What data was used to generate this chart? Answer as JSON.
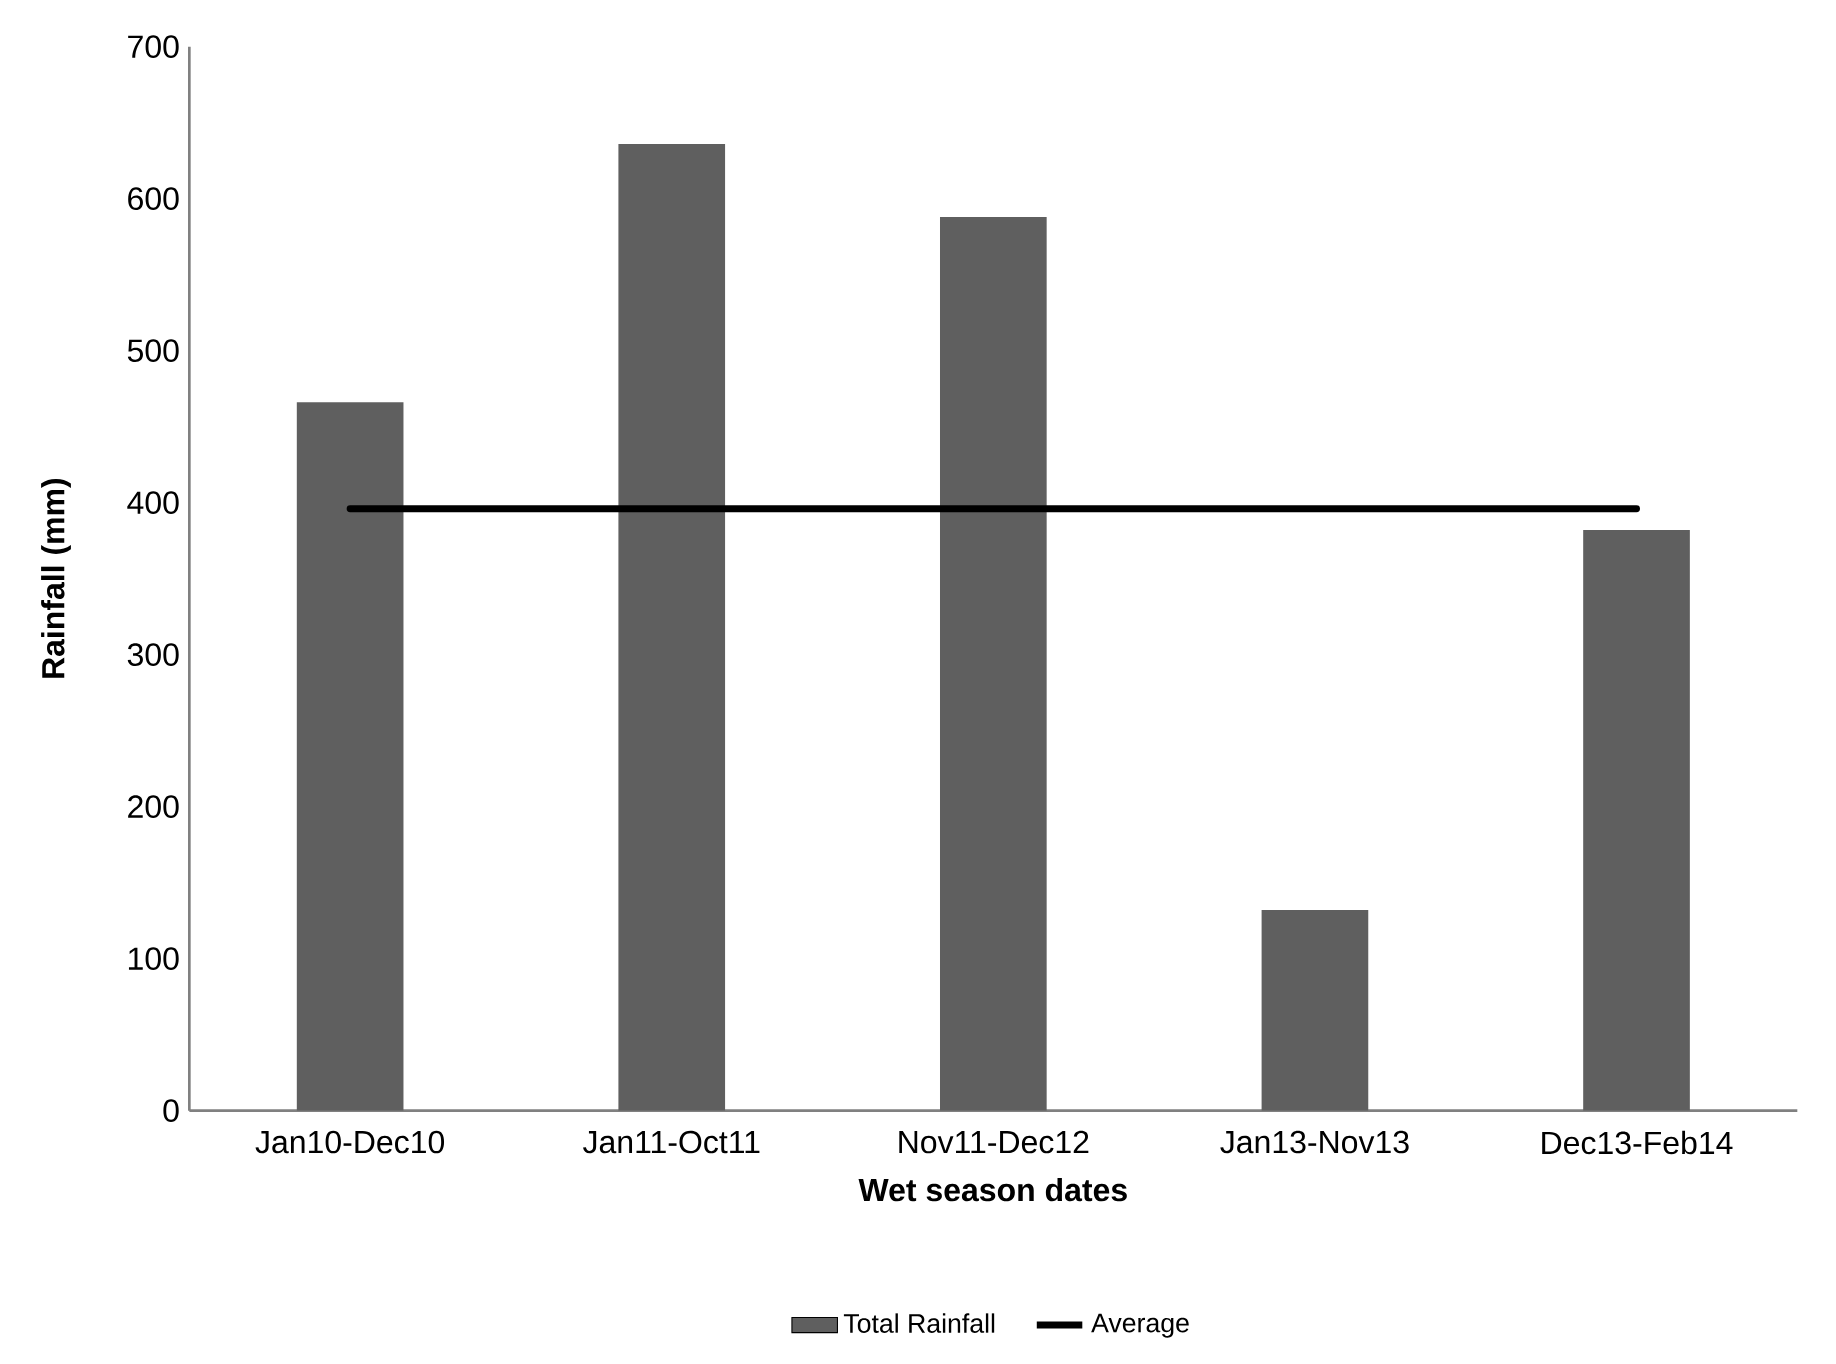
{
  "chart_data": {
    "type": "bar",
    "xlabel": "Wet season dates",
    "ylabel": "Rainfall (mm)",
    "categories": [
      "Jan10-Dec10",
      "Jan11-Oct11",
      "Nov11-Dec12",
      "Jan13-Nov13",
      "Dec13-Feb14"
    ],
    "series": [
      {
        "name": "Total Rainfall",
        "color": "#5f5f5f",
        "values": [
          466,
          636,
          588,
          132,
          382
        ]
      },
      {
        "name": "Average",
        "type": "line",
        "color": "#000000",
        "values": [
          396,
          396,
          396,
          396,
          396
        ]
      }
    ],
    "ylim": [
      0,
      700
    ],
    "yticks": [
      0,
      100,
      200,
      300,
      400,
      500,
      600,
      700
    ],
    "grid": false,
    "legend": "bottom",
    "marker": "none"
  }
}
